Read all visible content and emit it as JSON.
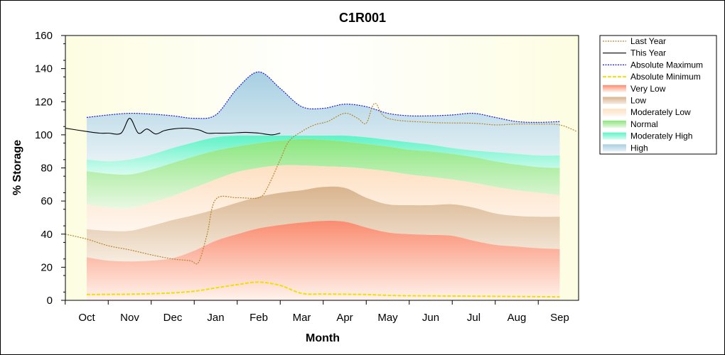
{
  "chart_data": {
    "type": "area",
    "title": "C1R001",
    "xlabel": "Month",
    "ylabel": "% Storage",
    "ylim": [
      0,
      160
    ],
    "yticks": [
      0,
      20,
      40,
      60,
      80,
      100,
      120,
      140,
      160
    ],
    "months": [
      "Oct",
      "Nov",
      "Dec",
      "Jan",
      "Feb",
      "Mar",
      "Apr",
      "May",
      "Jun",
      "Jul",
      "Aug",
      "Sep"
    ],
    "grid": false,
    "legend_position": "right",
    "bands_x": [
      0.0,
      0.5,
      1.0,
      1.5,
      2.0,
      2.5,
      3.0,
      3.5,
      4.0,
      4.5,
      5.0,
      5.5,
      6.0,
      6.5,
      7.0,
      7.5,
      8.0,
      8.5,
      9.0,
      9.5,
      10.0,
      10.5,
      11.0
    ],
    "band_boundaries": {
      "absolute_minimum": [
        3.5,
        3.6,
        3.7,
        4.0,
        4.5,
        5.5,
        7.5,
        9.5,
        11,
        9,
        4.2,
        3.8,
        3.7,
        3.5,
        3.0,
        2.8,
        2.7,
        2.6,
        2.5,
        2.4,
        2.3,
        2.2,
        2.1
      ],
      "very_low_top": [
        26,
        24,
        23.5,
        24,
        25.5,
        30,
        36,
        40,
        43.5,
        45.5,
        47,
        48,
        47.5,
        44,
        41,
        40,
        39.5,
        39,
        36,
        33.5,
        32.5,
        31.5,
        31
      ],
      "low_top": [
        43,
        42,
        42,
        45,
        48.5,
        51.5,
        55,
        59,
        62.5,
        65,
        66.5,
        68.5,
        68,
        62,
        58,
        57.5,
        57.5,
        58,
        56,
        52.5,
        51,
        50.5,
        50.5
      ],
      "moderately_low_top": [
        58,
        56,
        55.5,
        59,
        63,
        68,
        73,
        77.5,
        80,
        81.5,
        81.5,
        81,
        80.5,
        79.5,
        78,
        76,
        74.5,
        73,
        71,
        68.5,
        66.5,
        65,
        63.5
      ],
      "normal_top": [
        78,
        76.5,
        76,
        79,
        83,
        87,
        90.5,
        93,
        95,
        96.5,
        97.5,
        97,
        96,
        94.5,
        93,
        91,
        90,
        88.5,
        86.5,
        84,
        82,
        80.5,
        80
      ],
      "moderately_high_top": [
        85,
        84,
        85,
        88,
        92,
        95.5,
        98.5,
        99.5,
        99.5,
        99.5,
        99.5,
        99.5,
        99.5,
        98.5,
        97,
        95.5,
        94,
        92,
        90.5,
        89.5,
        88.5,
        87.5,
        87.5
      ],
      "absolute_maximum": [
        110.5,
        112,
        113,
        112.5,
        111.5,
        110,
        112,
        128,
        138,
        128,
        117,
        116,
        118.5,
        117,
        113,
        111.5,
        111.5,
        112,
        113,
        110.5,
        108,
        107.5,
        108
      ]
    },
    "series": [
      {
        "name": "Last Year",
        "x": [
          -0.5,
          0.0,
          0.5,
          1.0,
          1.5,
          2.0,
          2.4,
          2.6,
          2.8,
          3.0,
          3.5,
          4.0,
          4.2,
          4.5,
          4.7,
          5.0,
          5.3,
          5.6,
          6.0,
          6.3,
          6.5,
          6.7,
          7.0,
          8.0,
          9.0,
          9.5,
          10.0,
          10.5,
          11.0,
          11.4
        ],
        "y": [
          40,
          37,
          33,
          30.5,
          27.5,
          25,
          24,
          23,
          40,
          61,
          62,
          62,
          68,
          85,
          96,
          102,
          106,
          108,
          113,
          110,
          107,
          119,
          110,
          107.5,
          107,
          106,
          106.5,
          106.5,
          106,
          102
        ]
      },
      {
        "name": "This Year",
        "x": [
          -0.5,
          0.0,
          0.3,
          0.5,
          0.8,
          1.0,
          1.2,
          1.4,
          1.6,
          1.8,
          2.0,
          2.3,
          2.6,
          2.8,
          3.0,
          3.3,
          3.7,
          4.0,
          4.3,
          4.5
        ],
        "y": [
          104,
          102,
          101,
          101,
          101,
          110,
          101,
          103.5,
          100.5,
          102.5,
          103.5,
          104,
          103,
          101,
          101,
          101,
          101.5,
          101,
          100,
          101
        ]
      }
    ],
    "legend": [
      "Last Year",
      "This Year",
      "Absolute Maximum",
      "Absolute Minimum",
      "Very Low",
      "Low",
      "Moderately Low",
      "Normal",
      "Moderately High",
      "High"
    ],
    "colors": {
      "last_year": "#b8862e",
      "this_year": "#000000",
      "absolute_maximum": "#1d1dcf",
      "absolute_minimum": "#f0e000",
      "very_low": "#f98c72",
      "low": "#d4b08c",
      "moderately_low": "#fbe2c6",
      "normal": "#87e07c",
      "moderately_high": "#6cf0c8",
      "high": "#a9d1e4",
      "plot_background": "#fdfde6"
    }
  }
}
